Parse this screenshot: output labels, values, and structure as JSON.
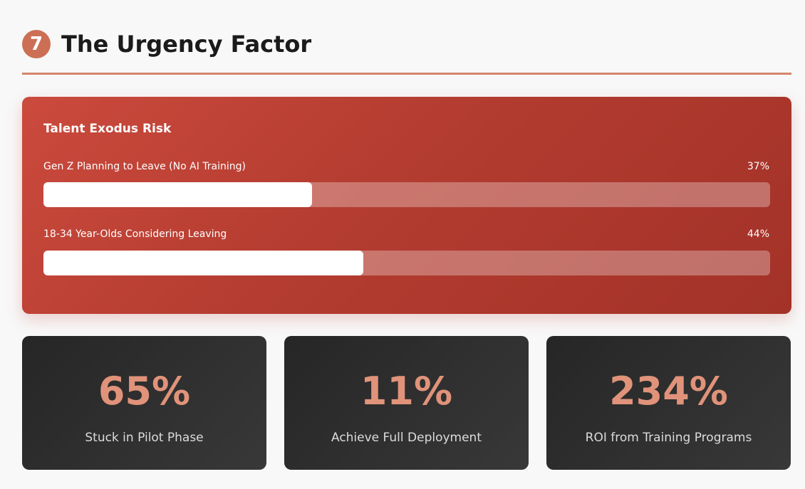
{
  "header": {
    "badge": "7",
    "title": "The Urgency Factor"
  },
  "risk_card": {
    "title": "Talent Exodus Risk",
    "bars": [
      {
        "label": "Gen Z Planning to Leave (No AI Training)",
        "value_text": "37%",
        "value": 37
      },
      {
        "label": "18-34 Year-Olds Considering Leaving",
        "value_text": "44%",
        "value": 44
      }
    ]
  },
  "stats": [
    {
      "value": "65%",
      "label": "Stuck in Pilot Phase"
    },
    {
      "value": "11%",
      "label": "Achieve Full Deployment"
    },
    {
      "value": "234%",
      "label": "ROI from Training Programs"
    }
  ],
  "colors": {
    "accent": "#cc6f55",
    "risk_card": "#b43c30",
    "stat_card": "#2e2e2e",
    "stat_value": "#e0937a"
  }
}
